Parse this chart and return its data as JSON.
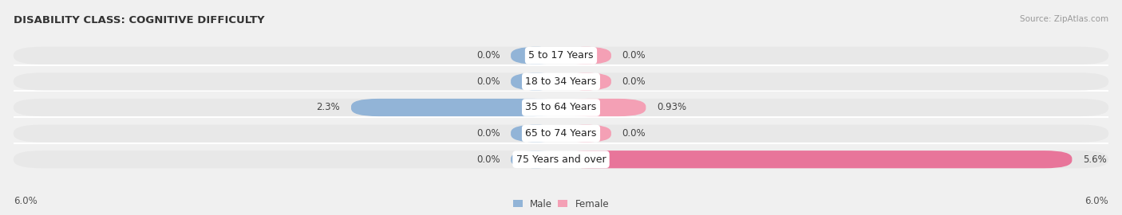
{
  "title": "DISABILITY CLASS: COGNITIVE DIFFICULTY",
  "source": "Source: ZipAtlas.com",
  "categories": [
    "5 to 17 Years",
    "18 to 34 Years",
    "35 to 64 Years",
    "65 to 74 Years",
    "75 Years and over"
  ],
  "male_values": [
    0.0,
    0.0,
    2.3,
    0.0,
    0.0
  ],
  "female_values": [
    0.0,
    0.0,
    0.93,
    0.0,
    5.6
  ],
  "male_labels": [
    "0.0%",
    "0.0%",
    "2.3%",
    "0.0%",
    "0.0%"
  ],
  "female_labels": [
    "0.0%",
    "0.0%",
    "0.93%",
    "0.0%",
    "5.6%"
  ],
  "male_color": "#92b4d7",
  "female_color": "#f4a0b5",
  "female_color_bright": "#e8759a",
  "axis_max": 6.0,
  "stub_min": 0.55,
  "x_axis_label_left": "6.0%",
  "x_axis_label_right": "6.0%",
  "bg_color": "#f0f0f0",
  "bar_bg_color": "#e0e0e0",
  "row_bg_color": "#e8e8e8",
  "title_fontsize": 9.5,
  "label_fontsize": 8.5,
  "category_fontsize": 9.0,
  "source_fontsize": 7.5
}
